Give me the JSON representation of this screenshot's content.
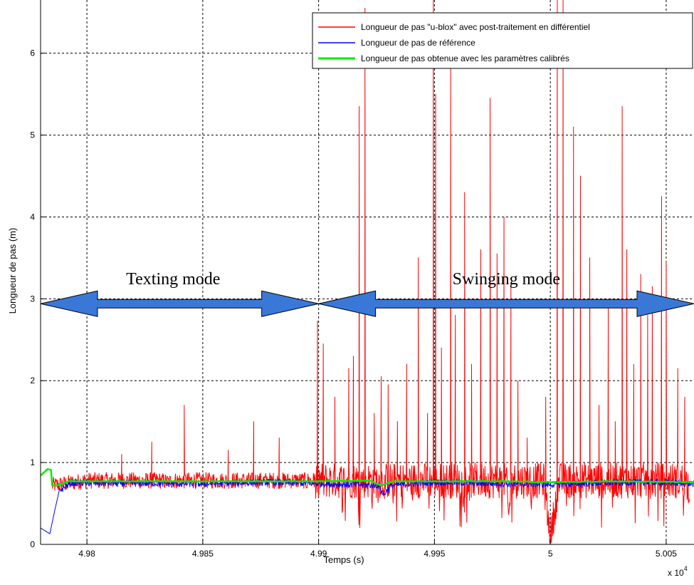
{
  "chart_data": {
    "type": "line",
    "title": "",
    "xlabel": "Temps (s)",
    "ylabel": "Longueur de pas (m)",
    "x_multiplier_label": "x 10^4",
    "x_multiplier": {
      "base": "x 10",
      "exponent": "4"
    },
    "xlim": [
      4.978,
      5.0062
    ],
    "ylim": [
      0,
      6.65
    ],
    "xticks": [
      4.98,
      4.985,
      4.99,
      4.995,
      5.0,
      5.005
    ],
    "xtick_labels": [
      "4.98",
      "4.985",
      "4.99",
      "4.995",
      "5",
      "5.005"
    ],
    "yticks": [
      0,
      1,
      2,
      3,
      4,
      5,
      6
    ],
    "ytick_labels": [
      "0",
      "1",
      "2",
      "3",
      "4",
      "5",
      "6"
    ],
    "grid": true,
    "grid_style": "dashed",
    "legend_position": "top-right",
    "series": [
      {
        "name": "Longueur de pas \"u-blox\" avec post-traitement en différentiel",
        "color": "#ff0000",
        "noise": 0.1,
        "x": [
          4.9785,
          4.98,
          4.982,
          4.9835,
          4.985,
          4.987,
          4.9885,
          4.9895,
          4.9899,
          4.9902,
          4.9905,
          4.991,
          4.9915,
          4.992,
          4.9921,
          4.9923,
          4.9925,
          4.993,
          4.9935,
          4.994,
          4.9945,
          4.995,
          4.99505,
          4.9952,
          4.9955,
          4.996,
          4.9965,
          4.997,
          4.9975,
          4.998,
          4.9982,
          4.9985,
          4.999,
          4.9995,
          5.0,
          5.0005,
          5.001,
          5.0015,
          5.002,
          5.0025,
          5.003,
          5.0035,
          5.004,
          5.0045,
          5.005,
          5.0055,
          5.006
        ],
        "y": [
          0.72,
          0.78,
          0.85,
          0.76,
          0.9,
          0.8,
          1.1,
          0.75,
          2.7,
          0.7,
          1.3,
          1.6,
          2.4,
          5.9,
          2.0,
          0.6,
          1.5,
          2.5,
          1.2,
          1.9,
          2.6,
          6.6,
          1.5,
          3.2,
          1.8,
          2.0,
          1.2,
          3.5,
          2.2,
          1.4,
          0.3,
          1.6,
          0.9,
          1.3,
          0.08,
          1.0,
          6.6,
          3.5,
          1.2,
          2.0,
          3.2,
          2.0,
          1.6,
          3.1,
          4.2,
          0.95,
          0.7
        ],
        "spikes": [
          [
            4.9815,
            1.1
          ],
          [
            4.9828,
            1.25
          ],
          [
            4.9842,
            1.7
          ],
          [
            4.9861,
            1.15
          ],
          [
            4.9872,
            1.5
          ],
          [
            4.9883,
            1.3
          ],
          [
            4.98995,
            2.73
          ],
          [
            4.9902,
            2.45
          ],
          [
            4.9907,
            1.8
          ],
          [
            4.9913,
            2.15
          ],
          [
            4.9915,
            2.3
          ],
          [
            4.99175,
            5.35
          ],
          [
            4.992,
            6.55
          ],
          [
            4.9924,
            1.6
          ],
          [
            4.9927,
            2.05
          ],
          [
            4.993,
            1.95
          ],
          [
            4.9934,
            1.5
          ],
          [
            4.9938,
            2.2
          ],
          [
            4.9943,
            3.5
          ],
          [
            4.9947,
            1.6
          ],
          [
            4.99495,
            6.65
          ],
          [
            4.99505,
            5.5
          ],
          [
            4.9953,
            2.4
          ],
          [
            4.9957,
            5.95
          ],
          [
            4.9959,
            2.8
          ],
          [
            4.9963,
            4.3
          ],
          [
            4.9966,
            2.2
          ],
          [
            4.997,
            3.6
          ],
          [
            4.9974,
            5.45
          ],
          [
            4.9977,
            3.55
          ],
          [
            4.998,
            4.0
          ],
          [
            4.9983,
            3.2
          ],
          [
            4.9986,
            2.0
          ],
          [
            4.999,
            1.3
          ],
          [
            4.9998,
            1.8
          ],
          [
            5.0003,
            6.65
          ],
          [
            5.00055,
            6.65
          ],
          [
            5.001,
            5.1
          ],
          [
            5.0013,
            4.5
          ],
          [
            5.0017,
            3.5
          ],
          [
            5.0021,
            1.7
          ],
          [
            5.0025,
            2.9
          ],
          [
            5.0028,
            1.5
          ],
          [
            5.0031,
            5.35
          ],
          [
            5.0033,
            3.6
          ],
          [
            5.0036,
            2.2
          ],
          [
            5.0039,
            3.3
          ],
          [
            5.0042,
            2.8
          ],
          [
            5.0044,
            3.15
          ],
          [
            5.0048,
            4.25
          ],
          [
            5.005,
            3.45
          ],
          [
            5.0055,
            2.15
          ],
          [
            5.0058,
            1.8
          ]
        ]
      },
      {
        "name": "Longueur de pas de référence",
        "color": "#0000ff",
        "noise": 0.04,
        "x": [
          4.978,
          4.9784,
          4.9786,
          4.9788,
          4.9793,
          4.985,
          4.988,
          4.9926,
          4.9928,
          4.9931,
          4.995,
          4.998,
          5.0,
          5.002,
          5.0045,
          5.0062
        ],
        "y": [
          0.2,
          0.13,
          0.4,
          0.65,
          0.75,
          0.74,
          0.76,
          0.72,
          0.6,
          0.72,
          0.76,
          0.74,
          0.73,
          0.75,
          0.76,
          0.74
        ]
      },
      {
        "name": "Longueur de pas obtenue avec les paramètres calibrés",
        "color": "#00ee00",
        "noise": 0.004,
        "x": [
          4.978,
          4.9783,
          4.97845,
          4.9785,
          4.9787,
          4.9792,
          4.985,
          4.99,
          4.9922,
          4.9927,
          4.9932,
          4.995,
          4.998,
          5.0,
          5.003,
          5.0062
        ],
        "y": [
          0.84,
          0.92,
          0.91,
          0.72,
          0.72,
          0.77,
          0.77,
          0.77,
          0.78,
          0.72,
          0.77,
          0.77,
          0.77,
          0.76,
          0.77,
          0.76
        ]
      }
    ],
    "annotations": [
      {
        "text": "Texting mode",
        "arrow_from": [
          4.978,
          2.94
        ],
        "arrow_to": [
          4.99,
          2.94
        ]
      },
      {
        "text": "Swinging mode",
        "arrow_from": [
          4.99,
          2.94
        ],
        "arrow_to": [
          5.0062,
          2.94
        ]
      }
    ],
    "arrow_color": "#3a78d8"
  }
}
